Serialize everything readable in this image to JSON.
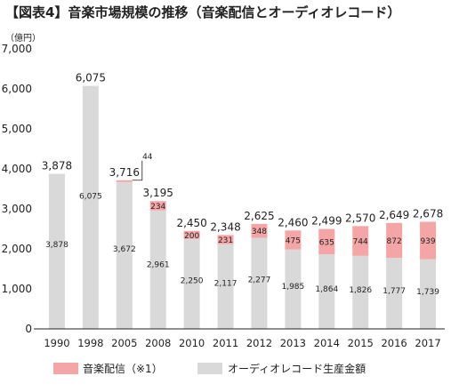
{
  "colors": {
    "digital": "#f4a6a6",
    "physical": "#d9d9d9",
    "axis": "#222222"
  },
  "chart_data": {
    "type": "bar",
    "stacked": true,
    "title": "【図表4】音楽市場規模の推移（音楽配信とオーディオレコード）",
    "ylabel": "（億円）",
    "xlabel": "",
    "ylim": [
      0,
      7000
    ],
    "yticks": [
      0,
      1000,
      2000,
      3000,
      4000,
      5000,
      6000,
      7000
    ],
    "ytick_labels": [
      "0",
      "1,000",
      "2,000",
      "3,000",
      "4,000",
      "5,000",
      "6,000",
      "7,000"
    ],
    "grid": false,
    "legend_position": "bottom",
    "categories": [
      "1990",
      "1998",
      "2005",
      "2008",
      "2010",
      "2011",
      "2012",
      "2013",
      "2014",
      "2015",
      "2016",
      "2017"
    ],
    "series": [
      {
        "name": "オーディオレコード生産金額",
        "values": [
          3878,
          6075,
          3672,
          2961,
          2250,
          2117,
          2277,
          1985,
          1864,
          1826,
          1777,
          1739
        ],
        "labels": [
          "3,878",
          "6,075",
          "3,672",
          "2,961",
          "2,250",
          "2,117",
          "2,277",
          "1,985",
          "1,864",
          "1,826",
          "1,777",
          "1,739"
        ]
      },
      {
        "name": "音楽配信（※1）",
        "values": [
          0,
          0,
          44,
          234,
          200,
          231,
          348,
          475,
          635,
          744,
          872,
          939
        ],
        "labels": [
          "",
          "",
          "44",
          "234",
          "200",
          "231",
          "348",
          "475",
          "635",
          "744",
          "872",
          "939"
        ]
      }
    ],
    "totals": [
      3878,
      6075,
      3716,
      3195,
      2450,
      2348,
      2625,
      2460,
      2499,
      2570,
      2649,
      2678
    ],
    "total_labels": [
      "3,878",
      "6,075",
      "3,716",
      "3,195",
      "2,450",
      "2,348",
      "2,625",
      "2,460",
      "2,499",
      "2,570",
      "2,649",
      "2,678"
    ]
  }
}
